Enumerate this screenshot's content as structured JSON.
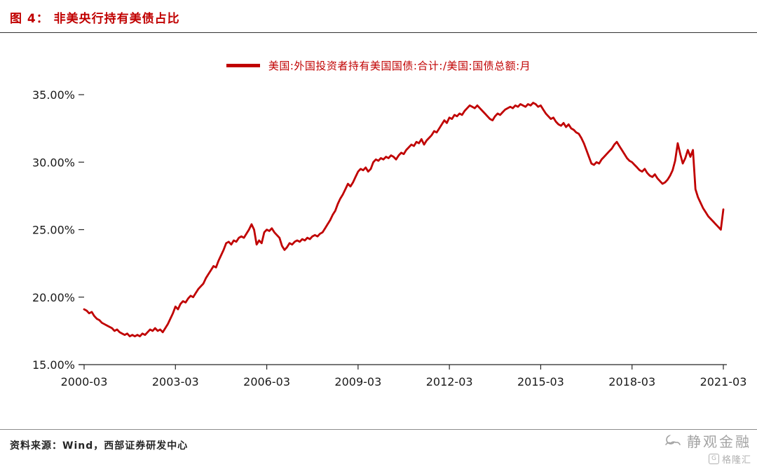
{
  "page": {
    "title": "图 4： 非美央行持有美债占比",
    "source": "资料来源：Wind，西部证券研发中心",
    "watermark_primary": "静观金融",
    "watermark_secondary": "格隆汇",
    "watermark_badge": "G"
  },
  "legend": {
    "label": "美国:外国投资者持有美国国债:合计:/美国:国债总额:月"
  },
  "colors": {
    "line": "#c00000",
    "axis": "#262626",
    "tick_text": "#1a1a1a",
    "watermark": "#a3a3a3"
  },
  "chart_data": {
    "type": "line",
    "title": "非美央行持有美债占比",
    "series_name": "美国:外国投资者持有美国国债:合计:/美国:国债总额:月",
    "x_unit": "month",
    "x_start": "2000-03",
    "x_end": "2021-03",
    "x_tick_labels": [
      "2000-03",
      "2003-03",
      "2006-03",
      "2009-03",
      "2012-03",
      "2015-03",
      "2018-03",
      "2021-03"
    ],
    "x_tick_indices": [
      0,
      36,
      72,
      108,
      144,
      180,
      216,
      252
    ],
    "y_ticks": [
      15,
      20,
      25,
      30,
      35
    ],
    "y_tick_labels": [
      "15.00%",
      "20.00%",
      "25.00%",
      "30.00%",
      "35.00%"
    ],
    "ylim": [
      15,
      35
    ],
    "grid": false,
    "legend_position": "top-center",
    "values": [
      19.1,
      19.0,
      18.8,
      18.9,
      18.6,
      18.4,
      18.3,
      18.1,
      18.0,
      17.9,
      17.8,
      17.7,
      17.5,
      17.6,
      17.4,
      17.3,
      17.2,
      17.3,
      17.1,
      17.2,
      17.1,
      17.2,
      17.1,
      17.3,
      17.2,
      17.4,
      17.6,
      17.5,
      17.7,
      17.5,
      17.6,
      17.4,
      17.7,
      18.0,
      18.4,
      18.8,
      19.3,
      19.1,
      19.5,
      19.7,
      19.6,
      19.9,
      20.1,
      20.0,
      20.3,
      20.6,
      20.8,
      21.0,
      21.4,
      21.7,
      22.0,
      22.3,
      22.2,
      22.7,
      23.1,
      23.5,
      24.0,
      24.1,
      23.9,
      24.2,
      24.1,
      24.4,
      24.5,
      24.4,
      24.7,
      25.0,
      25.4,
      25.0,
      23.9,
      24.2,
      24.0,
      24.8,
      25.0,
      24.9,
      25.1,
      24.8,
      24.6,
      24.4,
      23.8,
      23.5,
      23.7,
      24.0,
      23.9,
      24.1,
      24.2,
      24.1,
      24.3,
      24.2,
      24.4,
      24.3,
      24.5,
      24.6,
      24.5,
      24.7,
      24.8,
      25.1,
      25.4,
      25.7,
      26.1,
      26.4,
      26.9,
      27.3,
      27.6,
      28.0,
      28.4,
      28.2,
      28.5,
      28.9,
      29.3,
      29.5,
      29.4,
      29.6,
      29.3,
      29.5,
      30.0,
      30.2,
      30.1,
      30.3,
      30.2,
      30.4,
      30.3,
      30.5,
      30.4,
      30.2,
      30.5,
      30.7,
      30.6,
      30.9,
      31.1,
      31.3,
      31.2,
      31.5,
      31.4,
      31.7,
      31.3,
      31.6,
      31.8,
      32.0,
      32.3,
      32.2,
      32.5,
      32.8,
      33.1,
      32.9,
      33.3,
      33.2,
      33.5,
      33.4,
      33.6,
      33.5,
      33.8,
      34.0,
      34.2,
      34.1,
      34.0,
      34.2,
      34.0,
      33.8,
      33.6,
      33.4,
      33.2,
      33.1,
      33.4,
      33.6,
      33.5,
      33.7,
      33.9,
      34.0,
      34.1,
      34.0,
      34.2,
      34.1,
      34.3,
      34.2,
      34.1,
      34.3,
      34.2,
      34.4,
      34.3,
      34.1,
      34.2,
      33.9,
      33.6,
      33.4,
      33.2,
      33.3,
      33.0,
      32.8,
      32.7,
      32.9,
      32.6,
      32.8,
      32.5,
      32.4,
      32.2,
      32.1,
      31.8,
      31.4,
      30.9,
      30.4,
      29.9,
      29.8,
      30.0,
      29.9,
      30.2,
      30.4,
      30.6,
      30.8,
      31.0,
      31.3,
      31.5,
      31.2,
      30.9,
      30.6,
      30.3,
      30.1,
      30.0,
      29.8,
      29.6,
      29.4,
      29.3,
      29.5,
      29.2,
      29.0,
      28.9,
      29.1,
      28.8,
      28.6,
      28.4,
      28.5,
      28.7,
      29.0,
      29.4,
      30.1,
      31.4,
      30.6,
      29.9,
      30.3,
      30.9,
      30.4,
      30.9,
      28.0,
      27.4,
      27.0,
      26.6,
      26.3,
      26.0,
      25.8,
      25.6,
      25.4,
      25.2,
      25.0,
      26.5
    ]
  }
}
